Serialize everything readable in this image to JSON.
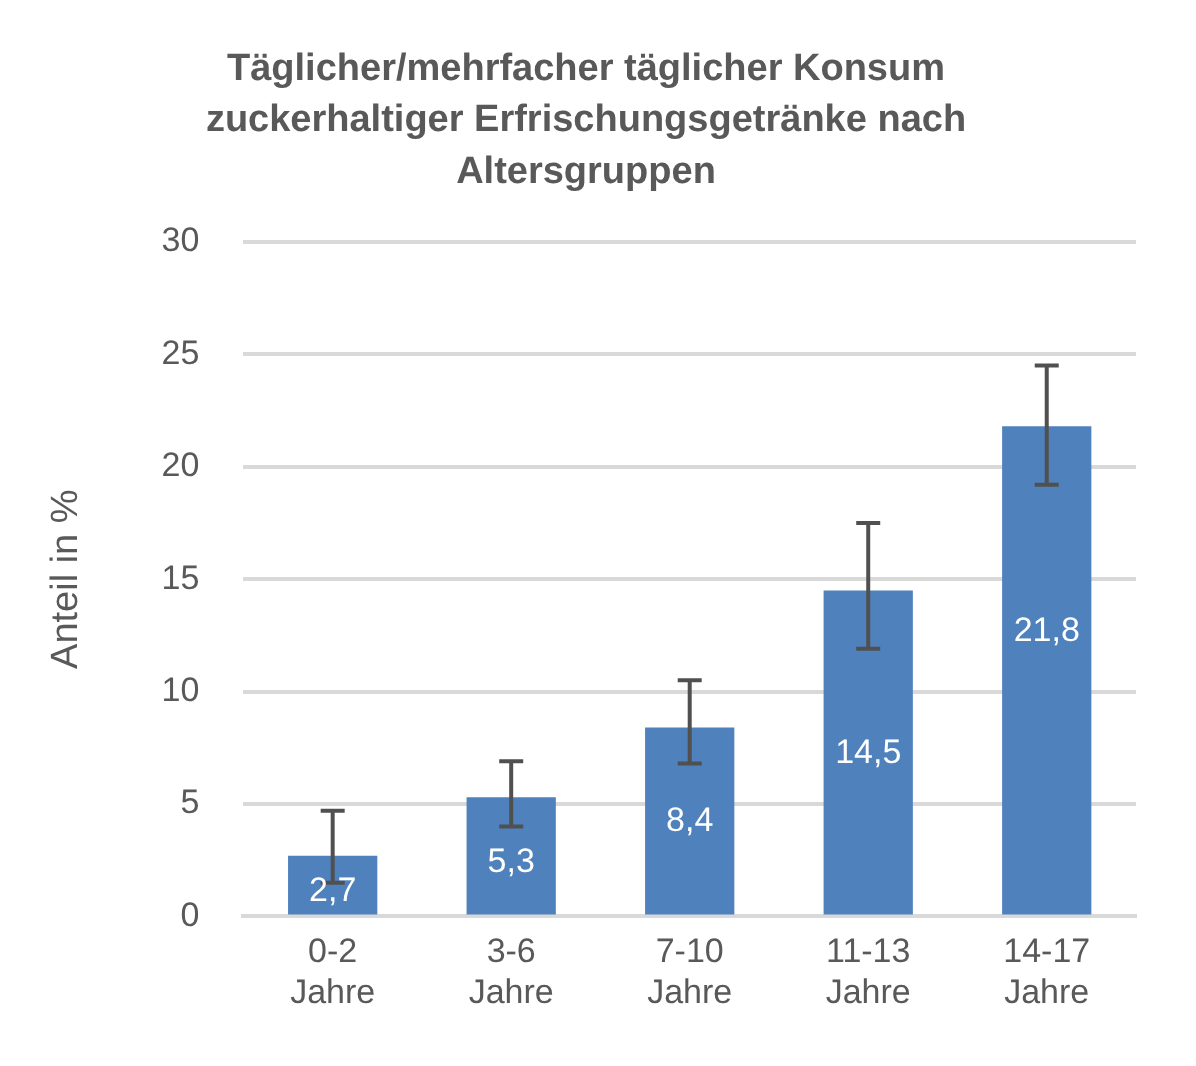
{
  "chart_data": {
    "type": "bar",
    "title": "Täglicher/mehrfacher täglicher Konsum zuckerhaltiger Erfrischungsgetränke nach Altersgruppen",
    "ylabel": "Anteil in %",
    "categories": [
      "0-2 Jahre",
      "3-6 Jahre",
      "7-10 Jahre",
      "11-13 Jahre",
      "14-17 Jahre"
    ],
    "values": [
      2.7,
      5.3,
      8.4,
      14.5,
      21.8
    ],
    "color": "#4f81bd",
    "errors": [
      [
        1.5,
        4.7
      ],
      [
        4.0,
        6.9
      ],
      [
        6.8,
        10.5
      ],
      [
        11.9,
        17.5
      ],
      [
        19.2,
        24.5
      ]
    ],
    "value_labels": [
      "2,7",
      "5,3",
      "8,4",
      "14,5",
      "21,8"
    ],
    "ylim": [
      0,
      30
    ],
    "yticks": [
      0,
      5,
      10,
      15,
      20,
      25,
      30
    ],
    "grid": "y",
    "legend": false
  }
}
